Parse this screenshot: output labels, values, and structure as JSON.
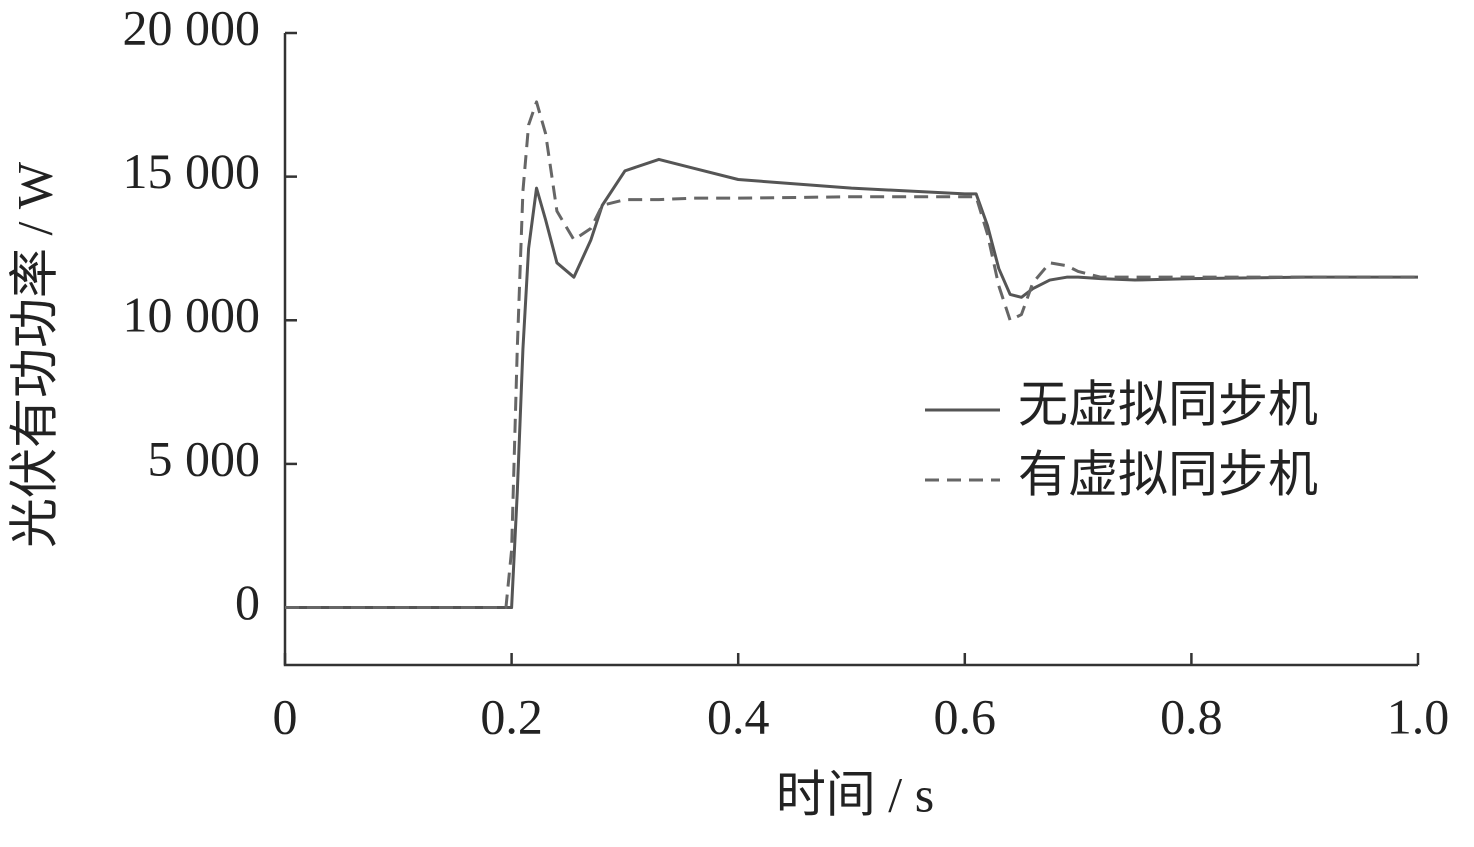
{
  "chart_data": {
    "type": "line",
    "x_label": "时间 / s",
    "y_label": "光伏有功功率 / W",
    "x": [
      0,
      0.195,
      0.2,
      0.205,
      0.21,
      0.215,
      0.222,
      0.23,
      0.24,
      0.255,
      0.27,
      0.28,
      0.3,
      0.33,
      0.36,
      0.4,
      0.5,
      0.6,
      0.61,
      0.62,
      0.63,
      0.64,
      0.65,
      0.66,
      0.675,
      0.69,
      0.7,
      0.72,
      0.75,
      0.8,
      0.9,
      1.0
    ],
    "series": [
      {
        "name": "无虚拟同步机",
        "color": "#555555",
        "dash": false,
        "values": [
          0,
          0,
          0,
          4000,
          9000,
          12500,
          14600,
          13500,
          12000,
          11500,
          12800,
          14000,
          15200,
          15600,
          15300,
          14900,
          14600,
          14400,
          14400,
          13300,
          11800,
          10900,
          10800,
          11100,
          11400,
          11500,
          11500,
          11450,
          11400,
          11450,
          11500,
          11500
        ]
      },
      {
        "name": "有虚拟同步机",
        "color": "#666666",
        "dash": true,
        "values": [
          0,
          0,
          2000,
          9000,
          14500,
          16800,
          17600,
          16500,
          13800,
          12800,
          13200,
          14000,
          14200,
          14200,
          14250,
          14250,
          14300,
          14300,
          14300,
          13000,
          11200,
          10000,
          10200,
          11300,
          12000,
          11900,
          11700,
          11500,
          11500,
          11500,
          11500,
          11500
        ]
      }
    ],
    "xlim": [
      0,
      1
    ],
    "ylim": [
      -2000,
      20000
    ],
    "xticks": [
      0,
      0.2,
      0.4,
      0.6,
      0.8,
      {
        "value": 1,
        "label": "1.0"
      }
    ],
    "yticks": [
      0,
      {
        "value": 5000,
        "label": "5 000"
      },
      {
        "value": 10000,
        "label": "10 000"
      },
      {
        "value": 15000,
        "label": "15 000"
      },
      {
        "value": 20000,
        "label": "20 000"
      }
    ],
    "legend": "right"
  }
}
